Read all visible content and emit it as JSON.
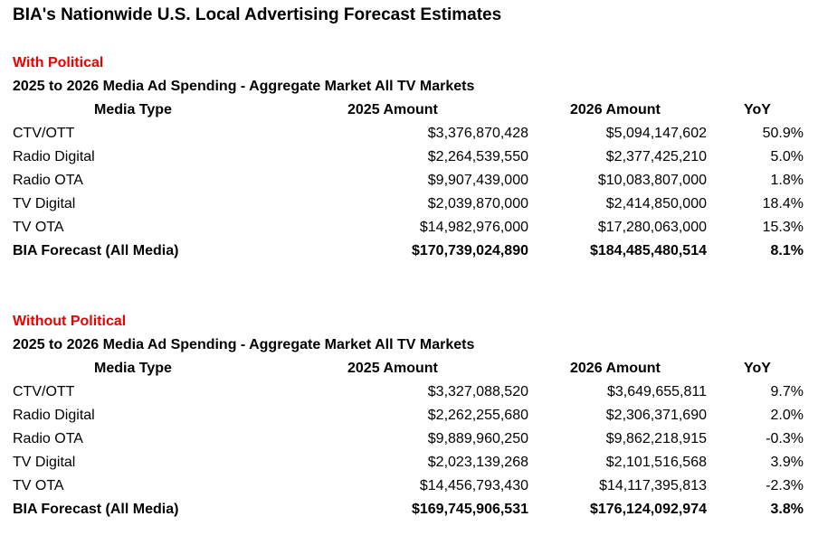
{
  "title": "BIA's Nationwide U.S. Local Advertising Forecast Estimates",
  "columns": [
    "Media Type",
    "2025 Amount",
    "2026 Amount",
    "YoY"
  ],
  "sections": [
    {
      "label": "With Political",
      "subtitle": "2025 to 2026 Media Ad Spending - Aggregate Market All TV Markets",
      "rows": [
        [
          "CTV/OTT",
          "$3,376,870,428",
          "$5,094,147,602",
          "50.9%"
        ],
        [
          "Radio Digital",
          "$2,264,539,550",
          "$2,377,425,210",
          "5.0%"
        ],
        [
          "Radio OTA",
          "$9,907,439,000",
          "$10,083,807,000",
          "1.8%"
        ],
        [
          "TV Digital",
          "$2,039,870,000",
          "$2,414,850,000",
          "18.4%"
        ],
        [
          "TV OTA",
          "$14,982,976,000",
          "$17,280,063,000",
          "15.3%"
        ],
        [
          "BIA Forecast (All Media)",
          "$170,739,024,890",
          "$184,485,480,514",
          "8.1%"
        ]
      ]
    },
    {
      "label": "Without Political",
      "subtitle": "2025 to 2026 Media Ad Spending - Aggregate Market All TV Markets",
      "rows": [
        [
          "CTV/OTT",
          "$3,327,088,520",
          "$3,649,655,811",
          "9.7%"
        ],
        [
          "Radio Digital",
          "$2,262,255,680",
          "$2,306,371,690",
          "2.0%"
        ],
        [
          "Radio OTA",
          "$9,889,960,250",
          "$9,862,218,915",
          "-0.3%"
        ],
        [
          "TV Digital",
          "$2,023,139,268",
          "$2,101,516,568",
          "3.9%"
        ],
        [
          "TV OTA",
          "$14,456,793,430",
          "$14,117,395,813",
          "-2.3%"
        ],
        [
          "BIA Forecast (All Media)",
          "$169,745,906,531",
          "$176,124,092,974",
          "3.8%"
        ]
      ]
    }
  ],
  "colors": {
    "section_label": "#ee0000"
  }
}
